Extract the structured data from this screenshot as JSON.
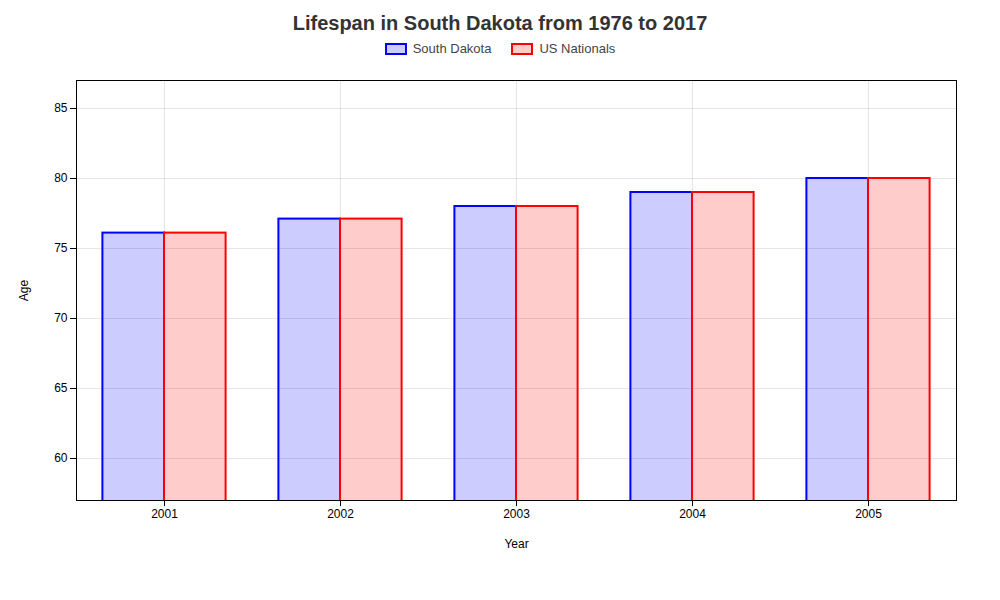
{
  "chart_data": {
    "type": "bar",
    "title": "Lifespan in South Dakota from 1976 to 2017",
    "xlabel": "Year",
    "ylabel": "Age",
    "categories": [
      "2001",
      "2002",
      "2003",
      "2004",
      "2005"
    ],
    "series": [
      {
        "name": "South Dakota",
        "color": "#0000ff",
        "values": [
          76.1,
          77.1,
          78.0,
          79.0,
          80.0
        ]
      },
      {
        "name": "US Nationals",
        "color": "#ff0000",
        "values": [
          76.1,
          77.1,
          78.0,
          79.0,
          80.0
        ]
      }
    ],
    "ylim": [
      57,
      87
    ],
    "yticks": [
      60,
      65,
      70,
      75,
      80,
      85
    ],
    "grid": true,
    "legend": "top"
  }
}
